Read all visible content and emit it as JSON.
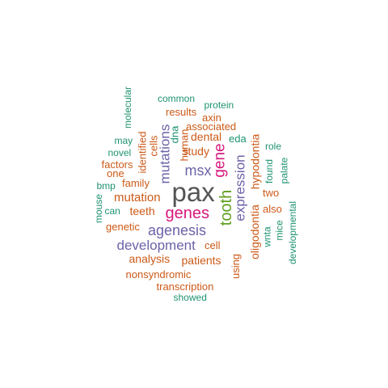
{
  "colors": {
    "gray": "#555555",
    "magenta": "#d6187c",
    "green": "#5f9e1f",
    "purple": "#6b63a8",
    "orange": "#cc5a18",
    "teal": "#1f9371"
  },
  "words": [
    {
      "text": "pax",
      "color": "gray",
      "weight": 32
    },
    {
      "text": "genes",
      "color": "magenta",
      "weight": 18
    },
    {
      "text": "tooth",
      "color": "green",
      "weight": 18
    },
    {
      "text": "gene",
      "color": "magenta",
      "weight": 17
    },
    {
      "text": "agenesis",
      "color": "purple",
      "weight": 16
    },
    {
      "text": "msx",
      "color": "purple",
      "weight": 16
    },
    {
      "text": "expression",
      "color": "purple",
      "weight": 16
    },
    {
      "text": "development",
      "color": "purple",
      "weight": 15
    },
    {
      "text": "mutations",
      "color": "purple",
      "weight": 14
    },
    {
      "text": "mutation",
      "color": "orange",
      "weight": 14
    },
    {
      "text": "dental",
      "color": "orange",
      "weight": 13
    },
    {
      "text": "study",
      "color": "orange",
      "weight": 13
    },
    {
      "text": "teeth",
      "color": "orange",
      "weight": 13
    },
    {
      "text": "patients",
      "color": "orange",
      "weight": 13
    },
    {
      "text": "analysis",
      "color": "orange",
      "weight": 13
    },
    {
      "text": "hypodontia",
      "color": "orange",
      "weight": 13
    },
    {
      "text": "oligodontia",
      "color": "orange",
      "weight": 13
    },
    {
      "text": "human",
      "color": "orange",
      "weight": 13
    },
    {
      "text": "cells",
      "color": "orange",
      "weight": 13
    },
    {
      "text": "associated",
      "color": "orange",
      "weight": 12
    },
    {
      "text": "family",
      "color": "orange",
      "weight": 12
    },
    {
      "text": "identified",
      "color": "orange",
      "weight": 12
    },
    {
      "text": "nonsyndromic",
      "color": "orange",
      "weight": 12
    },
    {
      "text": "transcription",
      "color": "orange",
      "weight": 12
    },
    {
      "text": "genetic",
      "color": "orange",
      "weight": 12
    },
    {
      "text": "results",
      "color": "orange",
      "weight": 12
    },
    {
      "text": "factors",
      "color": "orange",
      "weight": 12
    },
    {
      "text": "cell",
      "color": "orange",
      "weight": 12
    },
    {
      "text": "using",
      "color": "orange",
      "weight": 12
    },
    {
      "text": "also",
      "color": "orange",
      "weight": 12
    },
    {
      "text": "two",
      "color": "orange",
      "weight": 12
    },
    {
      "text": "one",
      "color": "orange",
      "weight": 12
    },
    {
      "text": "axin",
      "color": "orange",
      "weight": 12
    },
    {
      "text": "dna",
      "color": "teal",
      "weight": 12
    },
    {
      "text": "eda",
      "color": "teal",
      "weight": 12
    },
    {
      "text": "can",
      "color": "teal",
      "weight": 11
    },
    {
      "text": "bmp",
      "color": "teal",
      "weight": 11
    },
    {
      "text": "may",
      "color": "teal",
      "weight": 11
    },
    {
      "text": "novel",
      "color": "teal",
      "weight": 11
    },
    {
      "text": "common",
      "color": "teal",
      "weight": 11
    },
    {
      "text": "protein",
      "color": "teal",
      "weight": 11
    },
    {
      "text": "molecular",
      "color": "teal",
      "weight": 11
    },
    {
      "text": "role",
      "color": "teal",
      "weight": 11
    },
    {
      "text": "found",
      "color": "teal",
      "weight": 11
    },
    {
      "text": "palate",
      "color": "teal",
      "weight": 11
    },
    {
      "text": "mice",
      "color": "teal",
      "weight": 11
    },
    {
      "text": "wnta",
      "color": "teal",
      "weight": 11
    },
    {
      "text": "mouse",
      "color": "teal",
      "weight": 11
    },
    {
      "text": "developmental",
      "color": "teal",
      "weight": 11
    },
    {
      "text": "showed",
      "color": "teal",
      "weight": 11
    }
  ]
}
